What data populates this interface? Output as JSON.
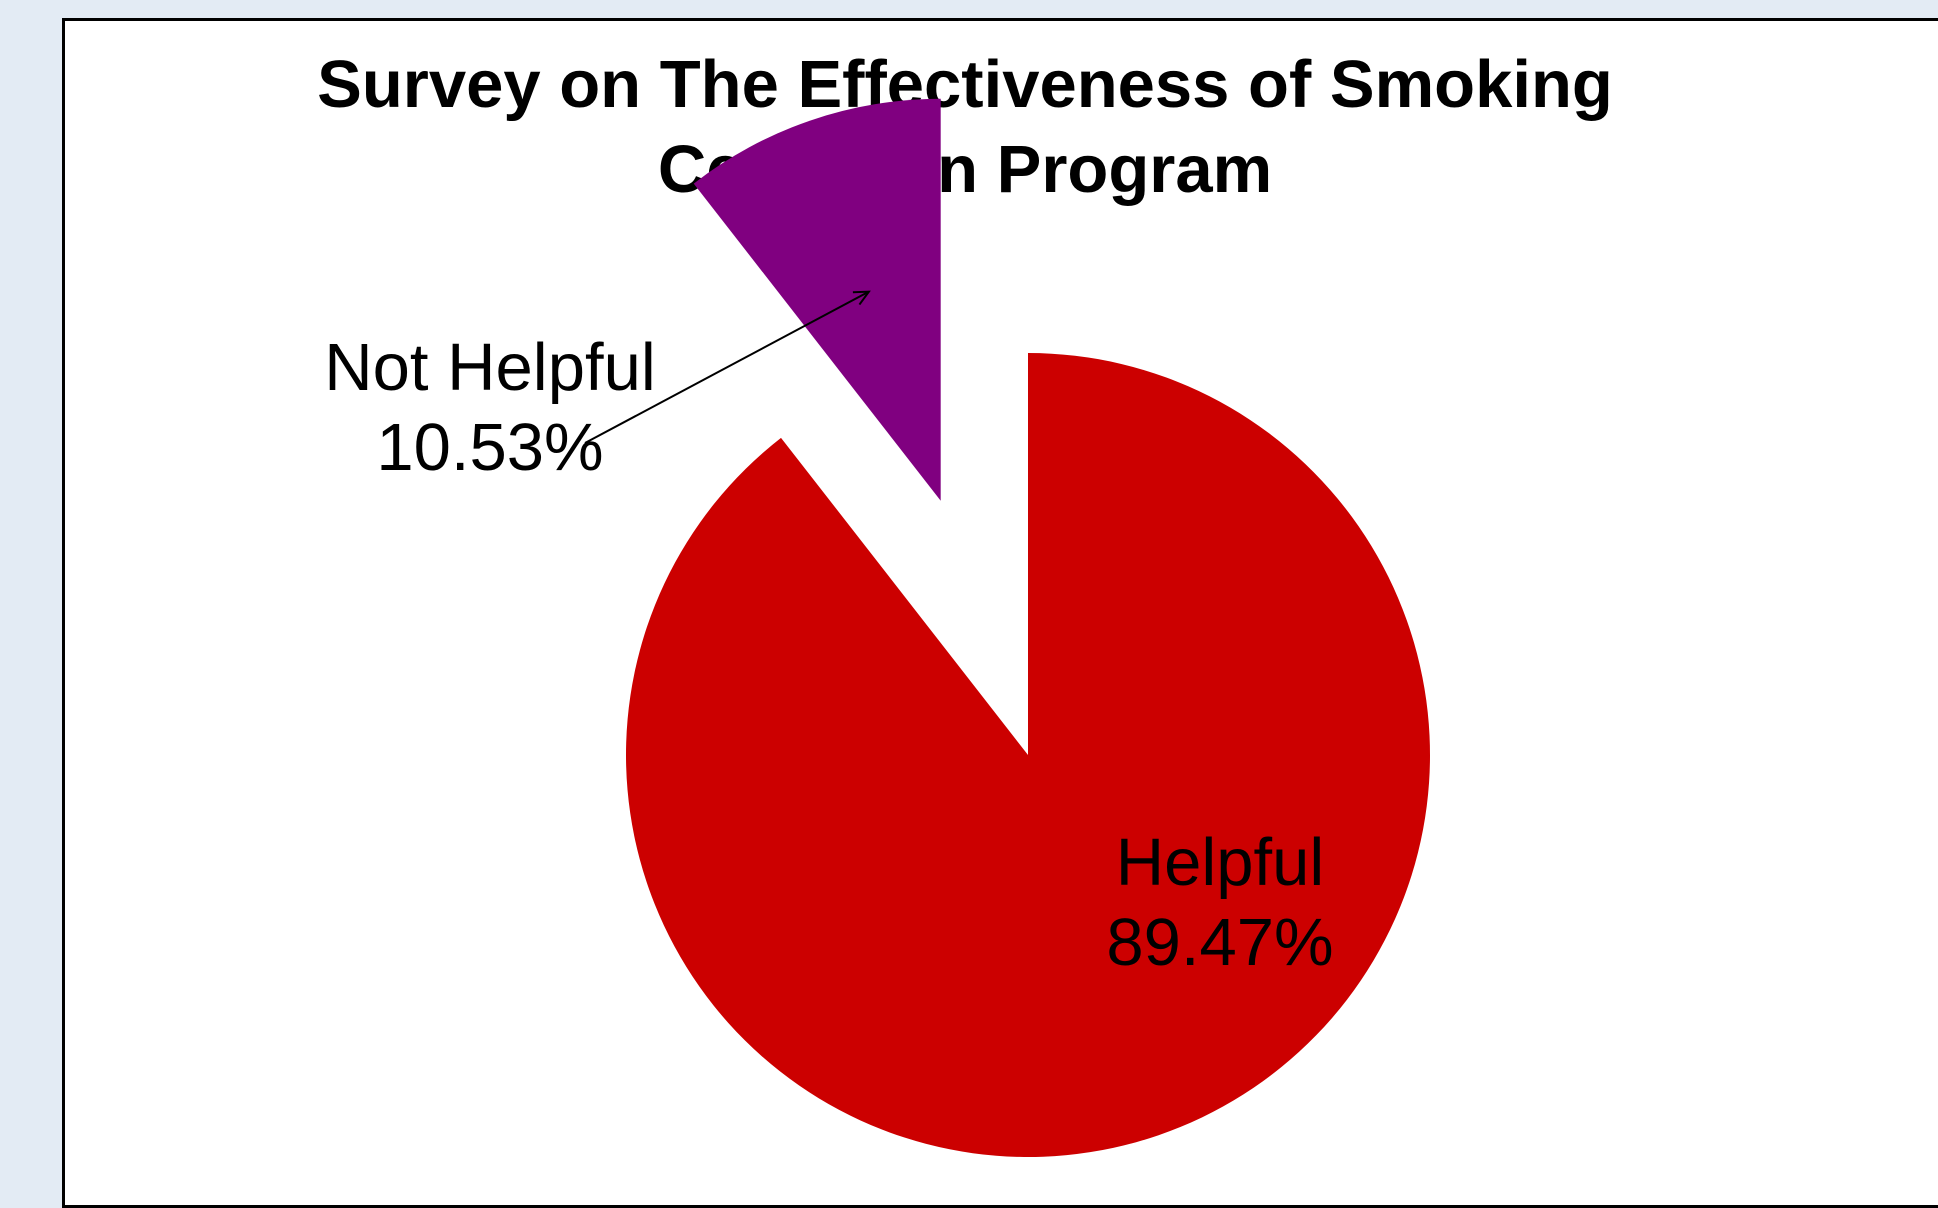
{
  "chart_data": {
    "type": "pie",
    "title": "Survey on The Effectiveness of Smoking Cessation Program",
    "title_lines": [
      "Survey on The Effectiveness of Smoking",
      "Cessation Program"
    ],
    "slices": [
      {
        "label": "Helpful",
        "value": 89.47,
        "value_text": "89.47%",
        "color": "#cc0000"
      },
      {
        "label": "Not Helpful",
        "value": 10.53,
        "value_text": "10.53%",
        "color": "#800080",
        "exploded": true
      }
    ],
    "legend": "none",
    "data_labels": "category name and percentage"
  },
  "colors": {
    "background": "#e3ebf4",
    "chart_area": "#ffffff",
    "border": "#000000"
  }
}
